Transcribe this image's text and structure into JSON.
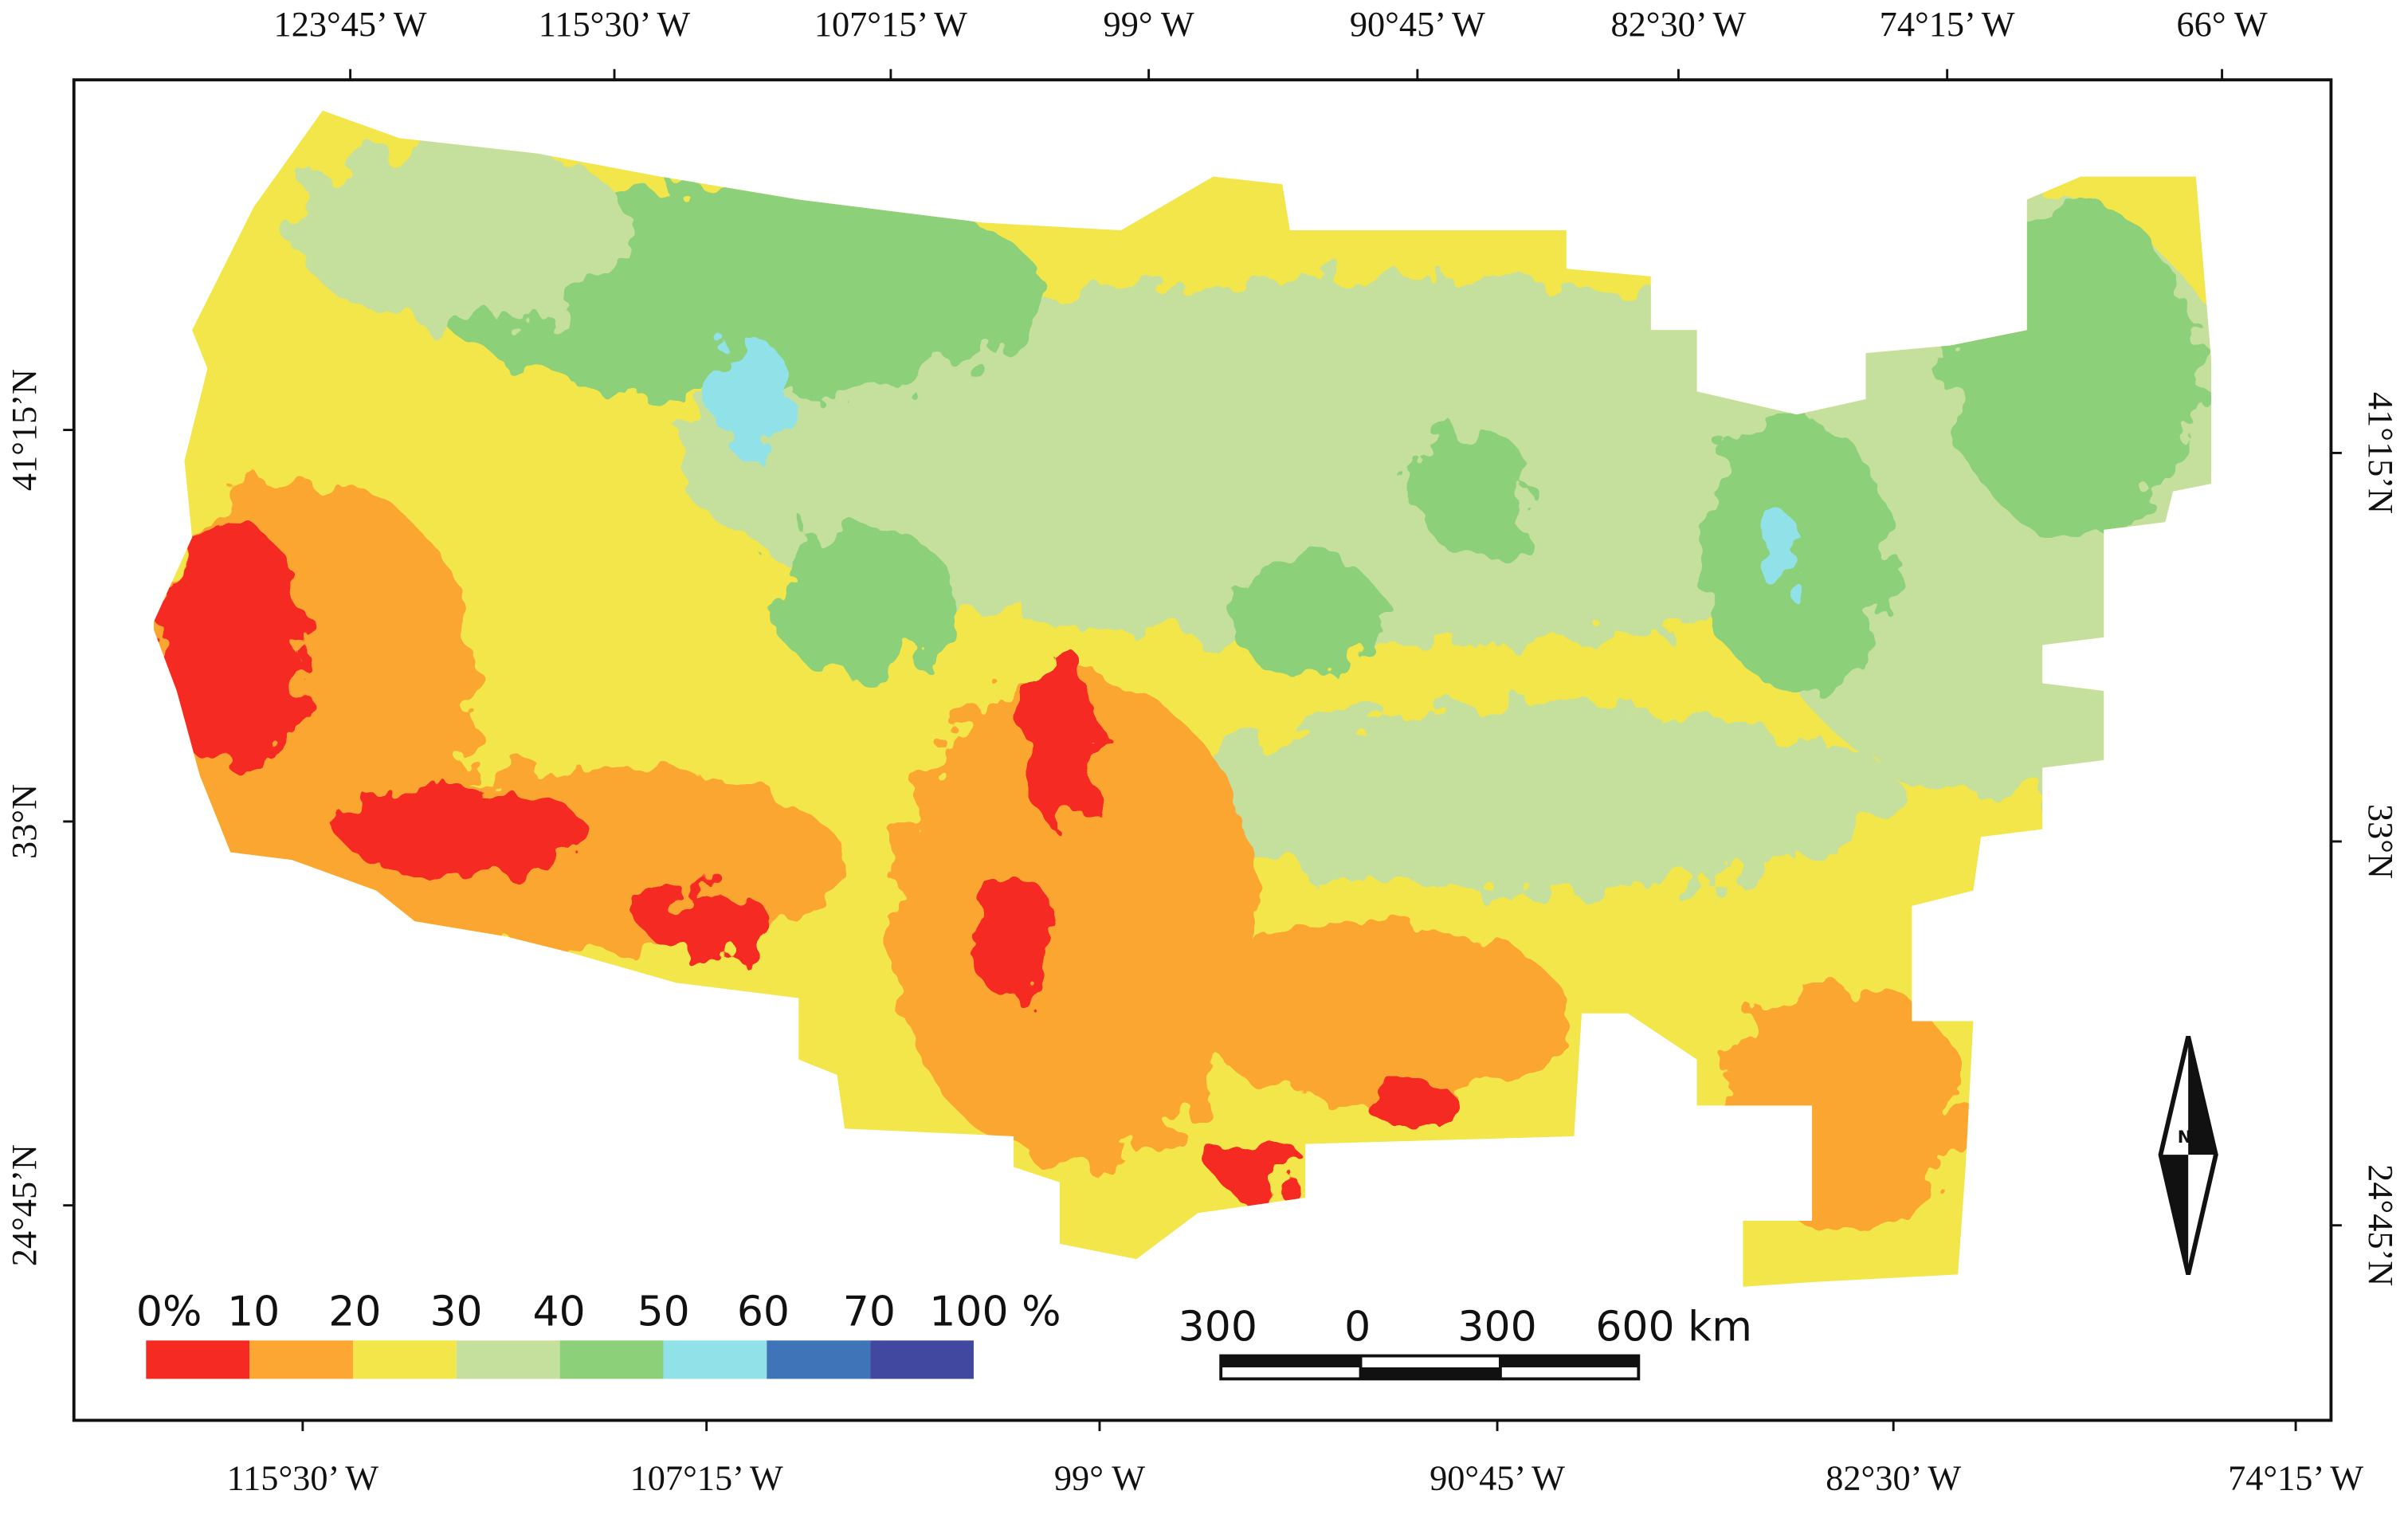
{
  "map": {
    "top_labels": [
      "123°45’ W",
      "115°30’ W",
      "107°15’ W",
      "99° W",
      "90°45’ W",
      "82°30’ W",
      "74°15’ W",
      "66° W"
    ],
    "bottom_labels": [
      "115°30’ W",
      "107°15’ W",
      "99° W",
      "90°45’ W",
      "82°30’ W",
      "74°15’ W"
    ],
    "left_labels": [
      "41°15’N",
      "33°N",
      "24°45’N"
    ],
    "right_labels": [
      "41°15’N",
      "33°N",
      "24°45’N"
    ],
    "legend": {
      "labels": [
        "0%",
        "10",
        "20",
        "30",
        "40",
        "50",
        "60",
        "70",
        "100 %"
      ],
      "colors": [
        "#f52a22",
        "#fca633",
        "#f2e64a",
        "#c5df9c",
        "#8cd07a",
        "#90e2e8",
        "#3f74b8",
        "#4048a0"
      ]
    },
    "scale_bar": {
      "labels": [
        "300",
        "0",
        "300",
        "600 km"
      ]
    },
    "north_label": "N"
  }
}
